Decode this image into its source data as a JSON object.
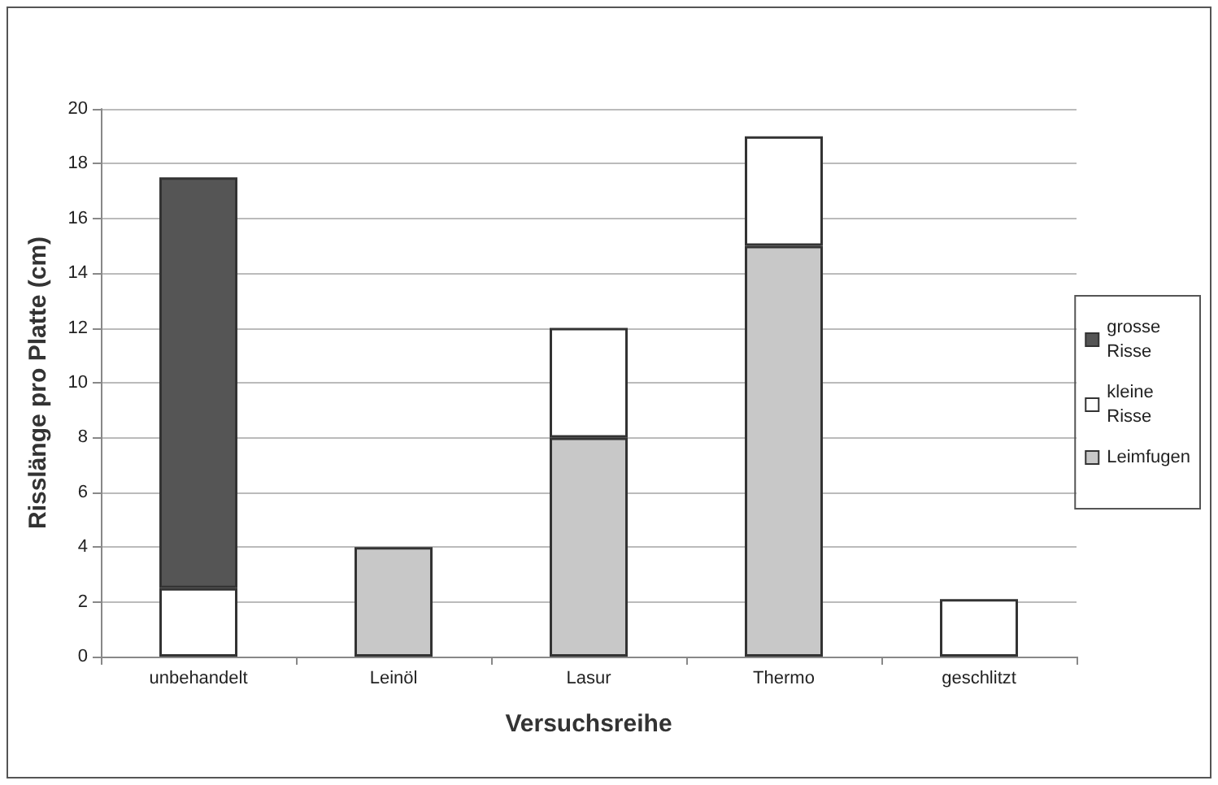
{
  "chart_data": {
    "type": "bar",
    "stacked": true,
    "xlabel": "Versuchsreihe",
    "ylabel": "Risslänge pro Platte (cm)",
    "categories": [
      "unbehandelt",
      "Leinöl",
      "Lasur",
      "Thermo",
      "geschlitzt"
    ],
    "series": [
      {
        "name": "Leimfugen",
        "color": "#c8c8c8",
        "values": [
          null,
          4,
          8,
          15,
          null
        ]
      },
      {
        "name": "kleine Risse",
        "color": "#ffffff",
        "values": [
          2.5,
          null,
          4,
          4,
          2.1
        ]
      },
      {
        "name": "grosse Risse",
        "color": "#555555",
        "values": [
          15,
          null,
          null,
          null,
          null
        ]
      }
    ],
    "ylim": [
      0,
      20
    ],
    "yticks": [
      0,
      2,
      4,
      6,
      8,
      10,
      12,
      14,
      16,
      18,
      20
    ],
    "grid": "y",
    "legend": "right"
  }
}
